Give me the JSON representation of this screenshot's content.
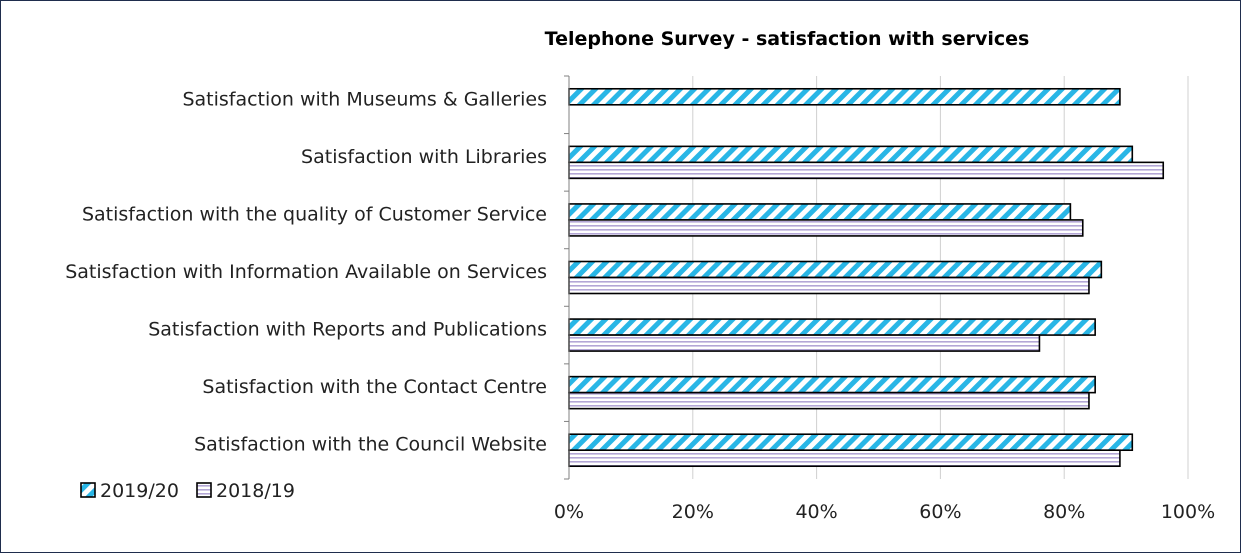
{
  "chart_data": {
    "type": "bar",
    "orientation": "horizontal",
    "title": "Telephone Survey - satisfaction with services",
    "categories": [
      "Satisfaction with Museums & Galleries",
      "Satisfaction with Libraries",
      "Satisfaction with the quality of Customer Service",
      "Satisfaction with Information Available on Services",
      "Satisfaction with Reports and Publications",
      "Satisfaction with the Contact Centre",
      "Satisfaction with the Council Website"
    ],
    "series": [
      {
        "name": "2019/20",
        "values": [
          89,
          91,
          81,
          86,
          85,
          85,
          91
        ],
        "color": "#29b6e6",
        "pattern": "diagonal-stripes"
      },
      {
        "name": "2018/19",
        "values": [
          null,
          96,
          83,
          84,
          76,
          84,
          89
        ],
        "color": "#b3a6d6",
        "pattern": "horizontal-lines"
      }
    ],
    "xlim": [
      0,
      100
    ],
    "xticks": [
      "0%",
      "20%",
      "40%",
      "60%",
      "80%",
      "100%"
    ],
    "grid": true,
    "legend_position": "bottom-left"
  }
}
